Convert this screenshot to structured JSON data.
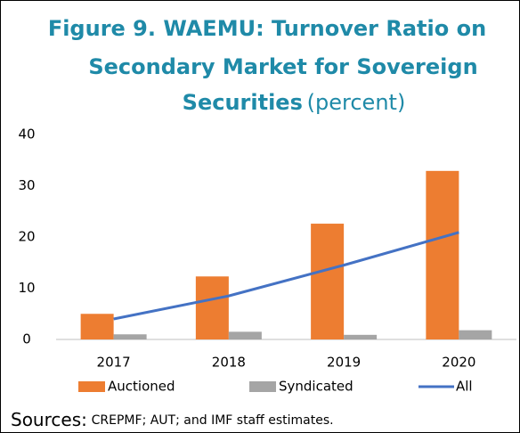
{
  "chart_data": {
    "type": "bar",
    "title": [
      "Figure 9. WAEMU: Turnover Ratio on",
      "Secondary Market for Sovereign",
      "Securities"
    ],
    "subtitle": "(percent)",
    "categories": [
      "2017",
      "2018",
      "2019",
      "2020"
    ],
    "series": [
      {
        "name": "Auctioned",
        "color": "#ed7d31",
        "type": "bar",
        "values": [
          5.0,
          12.3,
          22.6,
          32.9
        ]
      },
      {
        "name": "Syndicated",
        "color": "#a5a5a5",
        "type": "bar",
        "values": [
          1.0,
          1.5,
          0.9,
          1.8
        ]
      },
      {
        "name": "All",
        "color": "#4472c4",
        "type": "line",
        "values": [
          4.0,
          8.5,
          14.5,
          20.9
        ]
      }
    ],
    "ylim": [
      0,
      40
    ],
    "yticks": [
      0,
      10,
      20,
      30,
      40
    ],
    "grid": false,
    "legend": "bottom",
    "source_label": "Sources:",
    "source": "CREPMF; AUT; and IMF staff estimates."
  }
}
